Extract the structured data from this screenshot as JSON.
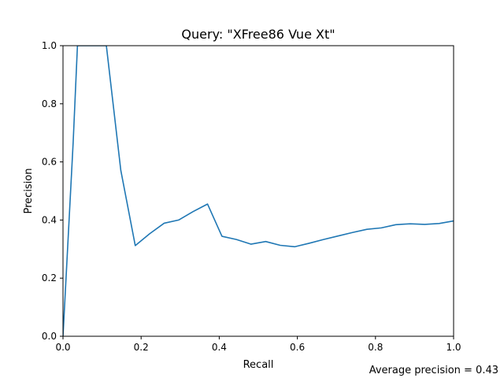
{
  "chart_data": {
    "type": "line",
    "title": "Query: \"XFree86 Vue Xt\"",
    "xlabel": "Recall",
    "ylabel": "Precision",
    "xlim": [
      0,
      1
    ],
    "ylim": [
      0,
      1
    ],
    "xticks": [
      "0.0",
      "0.2",
      "0.4",
      "0.6",
      "0.8",
      "1.0"
    ],
    "yticks": [
      "0.0",
      "0.2",
      "0.4",
      "0.6",
      "0.8",
      "1.0"
    ],
    "grid": false,
    "series": [
      {
        "color": "#1f77b4",
        "x": [
          0.0,
          0.026,
          0.037,
          0.056,
          0.074,
          0.093,
          0.111,
          0.148,
          0.185,
          0.222,
          0.259,
          0.296,
          0.333,
          0.37,
          0.407,
          0.444,
          0.481,
          0.519,
          0.556,
          0.593,
          0.63,
          0.667,
          0.704,
          0.741,
          0.778,
          0.815,
          0.852,
          0.889,
          0.926,
          0.963,
          1.0
        ],
        "y": [
          0.0,
          0.667,
          1.0,
          1.0,
          1.0,
          1.0,
          1.0,
          0.571,
          0.312,
          0.353,
          0.389,
          0.4,
          0.429,
          0.455,
          0.344,
          0.333,
          0.317,
          0.326,
          0.313,
          0.308,
          0.32,
          0.333,
          0.345,
          0.357,
          0.368,
          0.373,
          0.384,
          0.387,
          0.385,
          0.388,
          0.397
        ]
      }
    ],
    "annotation": "Average precision = 0.43"
  }
}
